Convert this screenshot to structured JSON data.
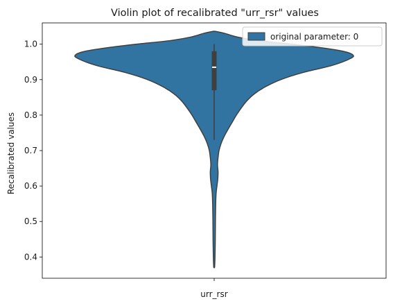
{
  "chart_data": {
    "type": "violin",
    "title": "Violin plot of recalibrated \"urr_rsr\" values",
    "xlabel": "",
    "ylabel": "Recalibrated values",
    "categories": [
      "urr_rsr"
    ],
    "ylim": [
      0.34,
      1.06
    ],
    "yticks": [
      0.4,
      0.5,
      0.6,
      0.7,
      0.8,
      0.9,
      1.0
    ],
    "ytick_labels": [
      "0.4",
      "0.5",
      "0.6",
      "0.7",
      "0.8",
      "0.9",
      "1.0"
    ],
    "legend": {
      "placement": "top-right",
      "entries": [
        "original parameter: 0"
      ]
    },
    "series": [
      {
        "name": "original parameter: 0",
        "color": "#3274a1",
        "density_profile": [
          [
            0.372,
            0.003
          ],
          [
            0.4,
            0.006
          ],
          [
            0.45,
            0.008
          ],
          [
            0.5,
            0.009
          ],
          [
            0.55,
            0.011
          ],
          [
            0.58,
            0.014
          ],
          [
            0.6,
            0.02
          ],
          [
            0.62,
            0.026
          ],
          [
            0.64,
            0.028
          ],
          [
            0.66,
            0.024
          ],
          [
            0.68,
            0.028
          ],
          [
            0.7,
            0.035
          ],
          [
            0.72,
            0.05
          ],
          [
            0.74,
            0.072
          ],
          [
            0.76,
            0.1
          ],
          [
            0.78,
            0.13
          ],
          [
            0.8,
            0.16
          ],
          [
            0.82,
            0.195
          ],
          [
            0.84,
            0.235
          ],
          [
            0.86,
            0.29
          ],
          [
            0.88,
            0.37
          ],
          [
            0.9,
            0.48
          ],
          [
            0.92,
            0.64
          ],
          [
            0.94,
            0.85
          ],
          [
            0.96,
            0.985
          ],
          [
            0.97,
            1.0
          ],
          [
            0.98,
            0.93
          ],
          [
            0.99,
            0.77
          ],
          [
            1.0,
            0.56
          ],
          [
            1.01,
            0.32
          ],
          [
            1.02,
            0.17
          ],
          [
            1.03,
            0.08
          ],
          [
            1.036,
            0.01
          ]
        ],
        "box": {
          "whisker_low": 0.73,
          "q1": 0.87,
          "median": 0.935,
          "q3": 0.98,
          "whisker_high": 1.0
        }
      }
    ]
  }
}
